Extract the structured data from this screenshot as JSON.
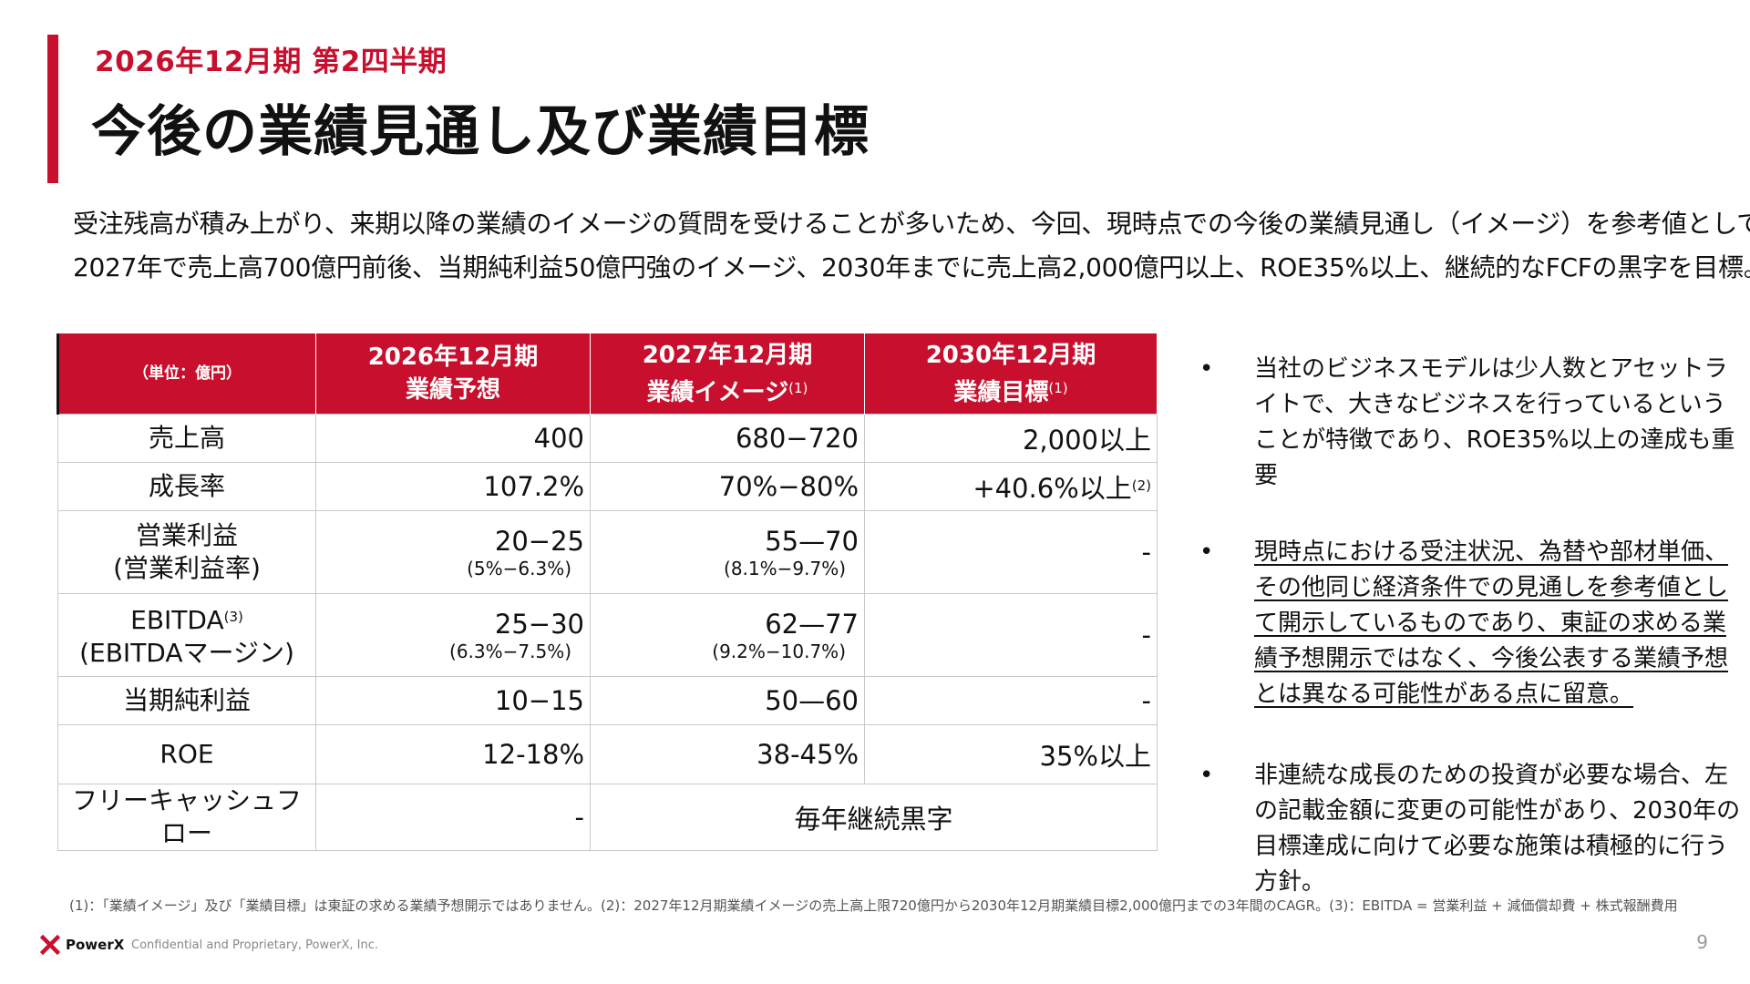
{
  "header": {
    "period": "2026年12月期 第2四半期",
    "title": "今後の業績見通し及び業績目標"
  },
  "intro": {
    "line1": "受注残高が積み上がり、来期以降の業績のイメージの質問を受けることが多いため、今回、現時点での今後の業績見通し（イメージ）を参考値として開示。",
    "line2": "2027年で売上高700億円前後、当期純利益50億円強のイメージ、2030年までに売上高2,000億円以上、ROE35%以上、継続的なFCFの黒字を目標。"
  },
  "table": {
    "unit_label": "（単位：億円）",
    "columns": [
      {
        "line1": "2026年12月期",
        "line2": "業績予想",
        "note": ""
      },
      {
        "line1": "2027年12月期",
        "line2": "業績イメージ",
        "note": "(1)"
      },
      {
        "line1": "2030年12月期",
        "line2": "業績目標",
        "note": "(1)"
      }
    ],
    "rows": {
      "sales": {
        "label": "売上高",
        "v2026": "400",
        "v2027": "680−720",
        "v2030": "2,000以上"
      },
      "growth": {
        "label": "成長率",
        "v2026": "107.2%",
        "v2027": "70%−80%",
        "v2030": "+40.6%以上",
        "v2030_note": "(2)"
      },
      "operating": {
        "label1": "営業利益",
        "label2": "(営業利益率)",
        "v2026": "20−25",
        "v2026_sub": "(5%−6.3%)",
        "v2027": "55—70",
        "v2027_sub": "(8.1%−9.7%)",
        "v2030": "-"
      },
      "ebitda": {
        "label1": "EBITDA",
        "label1_note": "(3)",
        "label2": "(EBITDAマージン)",
        "v2026": "25−30",
        "v2026_sub": "(6.3%−7.5%)",
        "v2027": "62—77",
        "v2027_sub": "(9.2%−10.7%)",
        "v2030": "-"
      },
      "net_income": {
        "label": "当期純利益",
        "v2026": "10−15",
        "v2027": "50—60",
        "v2030": "-"
      },
      "roe": {
        "label": "ROE",
        "v2026": "12-18%",
        "v2027": "38-45%",
        "v2030": "35%以上"
      },
      "fcf": {
        "label": "フリーキャッシュフロー",
        "v2026": "-",
        "v2027_2030": "毎年継続黒字"
      }
    }
  },
  "bullets": [
    {
      "marker": "•",
      "text": "当社のビジネスモデルは少人数とアセットライトで、大きなビジネスを行っているということが特徴であり、ROE35%以上の達成も重要"
    },
    {
      "marker": "•",
      "text": "現時点における受注状況、為替や部材単価、その他同じ経済条件での見通しを参考値として開示しているものであり、東証の求める業績予想開示ではなく、今後公表する業績予想とは異なる可能性がある点に留意。"
    },
    {
      "marker": "•",
      "text": "非連続な成長のための投資が必要な場合、左の記載金額に変更の可能性があり、2030年の目標達成に向けて必要な施策は積極的に行う方針。"
    }
  ],
  "footnote": "(1)：「業績イメージ」及び「業績目標」は東証の求める業績予想開示ではありません。(2)：2027年12月期業績イメージの売上高上限720億円から2030年12月期業績目標2,000億円までの3年間のCAGR。(3)：EBITDA = 営業利益 + 減価償却費 + 株式報酬費用",
  "footer": {
    "brand": "PowerX",
    "confidential": "Confidential and Proprietary, PowerX, Inc.",
    "page": "9"
  },
  "colors": {
    "accent": "#c8102e",
    "highlight": "#e0161e"
  }
}
